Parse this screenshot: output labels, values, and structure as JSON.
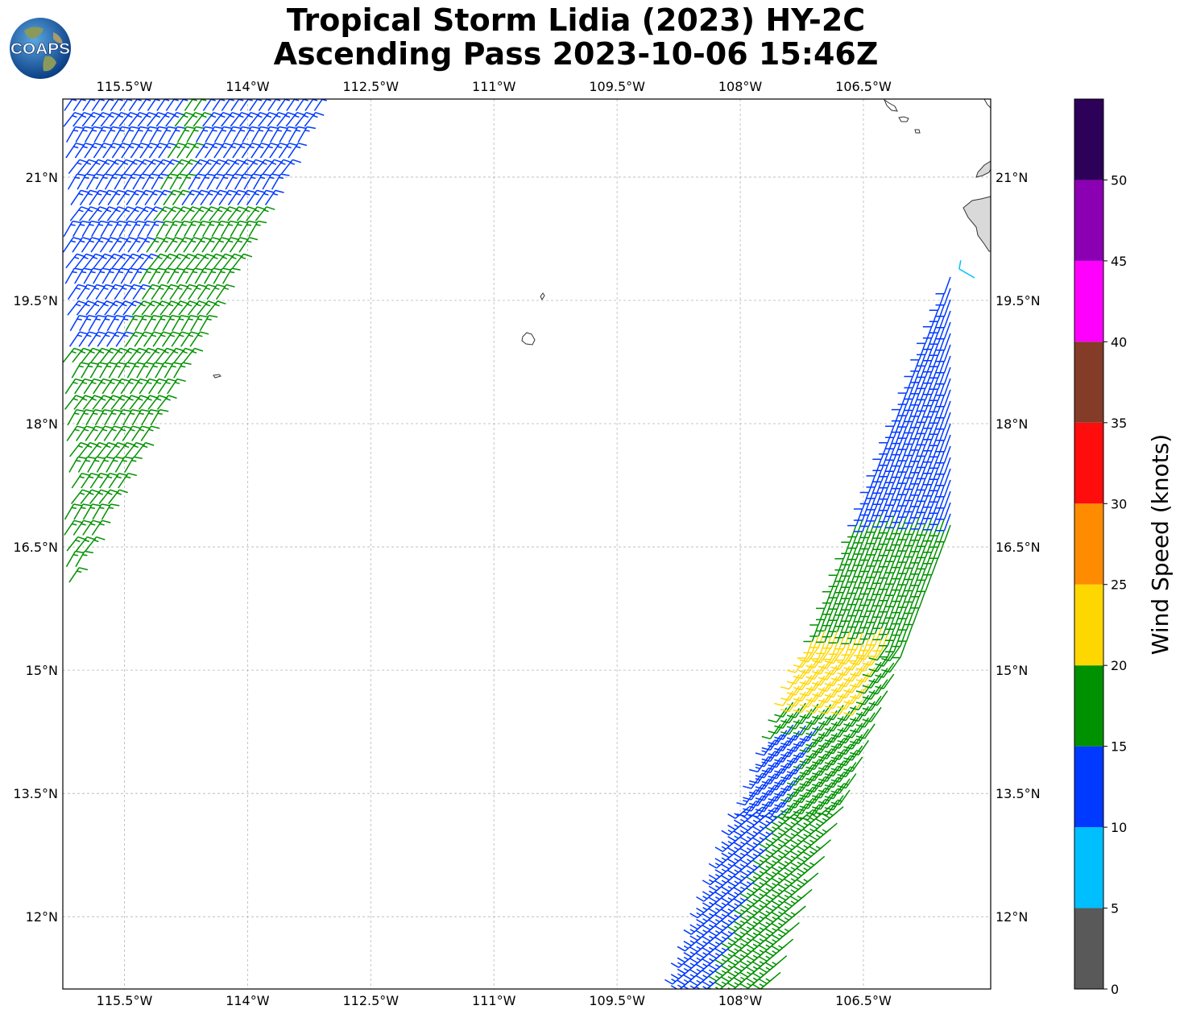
{
  "title": {
    "line1": "Tropical Storm Lidia (2023) HY-2C",
    "line2": "Ascending Pass 2023-10-06 15:46Z"
  },
  "logo": {
    "text": "COAPS",
    "icon": "globe-icon"
  },
  "map": {
    "lon_range": [
      -116.25,
      -104.95
    ],
    "lat_range": [
      11.12,
      21.95
    ],
    "lon_ticks": [
      {
        "value": -115.5,
        "label": "115.5°W"
      },
      {
        "value": -114.0,
        "label": "114°W"
      },
      {
        "value": -112.5,
        "label": "112.5°W"
      },
      {
        "value": -111.0,
        "label": "111°W"
      },
      {
        "value": -109.5,
        "label": "109.5°W"
      },
      {
        "value": -108.0,
        "label": "108°W"
      },
      {
        "value": -106.5,
        "label": "106.5°W"
      }
    ],
    "lat_ticks": [
      {
        "value": 21.0,
        "label": "21°N"
      },
      {
        "value": 19.5,
        "label": "19.5°N"
      },
      {
        "value": 18.0,
        "label": "18°N"
      },
      {
        "value": 16.5,
        "label": "16.5°N"
      },
      {
        "value": 15.0,
        "label": "15°N"
      },
      {
        "value": 13.5,
        "label": "13.5°N"
      },
      {
        "value": 12.0,
        "label": "12°N"
      }
    ],
    "grid": true,
    "land_color": "#d9d9d9",
    "coast_color": "#333333"
  },
  "colorbar": {
    "label": "Wind Speed (knots)",
    "bounds": [
      0,
      5,
      10,
      15,
      20,
      25,
      30,
      35,
      40,
      45,
      50,
      55
    ],
    "tick_labels": [
      "0",
      "5",
      "10",
      "15",
      "20",
      "25",
      "30",
      "35",
      "40",
      "45",
      "50"
    ],
    "colors": [
      "#595959",
      "#00bfff",
      "#0039ff",
      "#009100",
      "#ffd700",
      "#ff8c00",
      "#ff0d0d",
      "#843c29",
      "#ff00ff",
      "#8b00b3",
      "#2d0059"
    ]
  }
}
